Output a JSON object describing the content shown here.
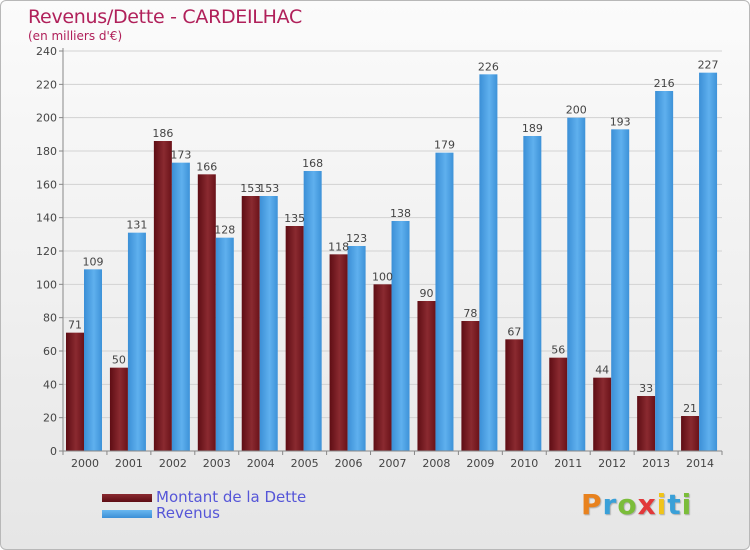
{
  "header": {
    "title": "Revenus/Dette - CARDEILHAC",
    "subtitle": "(en milliers d'€)"
  },
  "chart_data": {
    "type": "bar",
    "title": "Revenus/Dette - CARDEILHAC",
    "subtitle": "(en milliers d'€)",
    "xlabel": "",
    "ylabel": "",
    "ylim": [
      0,
      240
    ],
    "yticks": [
      0,
      20,
      40,
      60,
      80,
      100,
      120,
      140,
      160,
      180,
      200,
      220,
      240
    ],
    "grid": true,
    "categories": [
      "2000",
      "2001",
      "2002",
      "2003",
      "2004",
      "2005",
      "2006",
      "2007",
      "2008",
      "2009",
      "2010",
      "2011",
      "2012",
      "2013",
      "2014"
    ],
    "series": [
      {
        "name": "Montant de la Dette",
        "color": "#7a1e26",
        "values": [
          71,
          50,
          186,
          166,
          153,
          135,
          118,
          100,
          90,
          78,
          67,
          56,
          44,
          33,
          21
        ]
      },
      {
        "name": "Revenus",
        "color": "#4ea3e6",
        "values": [
          109,
          131,
          173,
          128,
          153,
          168,
          123,
          138,
          179,
          226,
          189,
          200,
          193,
          216,
          227
        ]
      }
    ],
    "legend": "bottom-left"
  },
  "logo": {
    "letters": [
      "P",
      "r",
      "o",
      "x",
      "i",
      "t",
      "i"
    ],
    "colors": [
      "#e8821e",
      "#3aa0d8",
      "#7bbd3a",
      "#e2383a",
      "#f0c419",
      "#3aa0d8",
      "#7bbd3a"
    ]
  }
}
